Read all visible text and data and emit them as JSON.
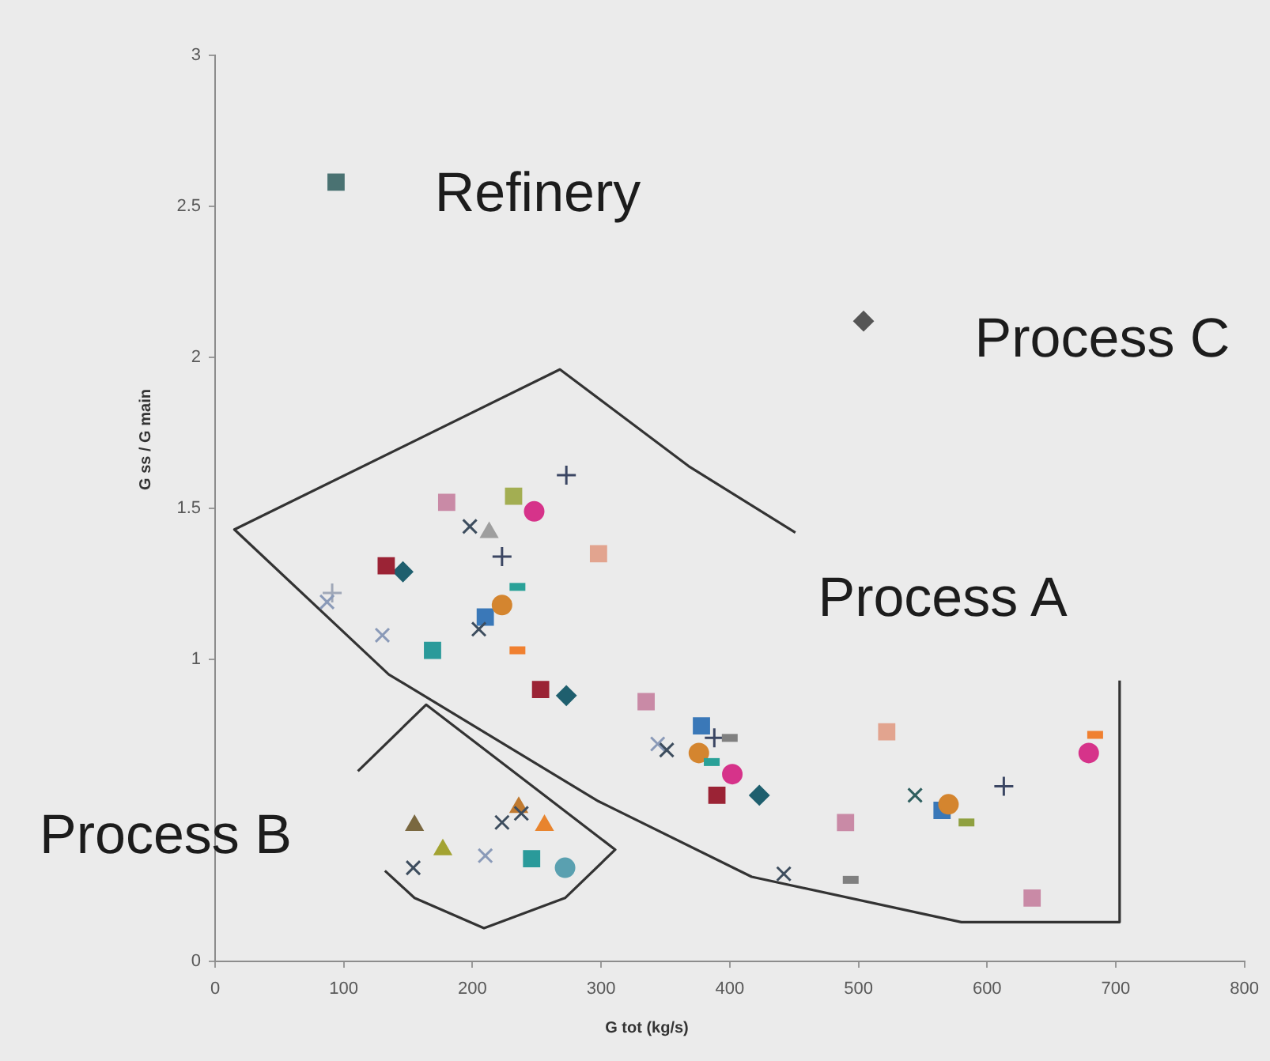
{
  "chart_data": {
    "type": "scatter",
    "xlabel": "G tot (kg/s)",
    "ylabel": "G ss / G main",
    "xlim": [
      0,
      800
    ],
    "xticks": [
      0,
      100,
      200,
      300,
      400,
      500,
      600,
      700,
      800
    ],
    "ylim": [
      0,
      3
    ],
    "yticks": [
      0,
      1,
      1.5,
      2,
      2.5,
      3
    ],
    "annotations": [
      "Refinery",
      "Process C",
      "Process A",
      "Process B"
    ],
    "series": [
      {
        "type": "scatter",
        "marker": "square",
        "color": "#4a7272",
        "x": [
          94
        ],
        "values": [
          2.58
        ]
      },
      {
        "type": "scatter",
        "marker": "square",
        "color": "#c98aa6",
        "x": [
          180,
          335,
          490,
          635
        ],
        "values": [
          1.52,
          0.86,
          0.46,
          0.21
        ]
      },
      {
        "type": "scatter",
        "marker": "square",
        "color": "#a3ae52",
        "x": [
          232
        ],
        "values": [
          1.54
        ]
      },
      {
        "type": "scatter",
        "marker": "circle",
        "color": "#d6338a",
        "x": [
          248,
          402,
          679
        ],
        "values": [
          1.49,
          0.62,
          0.69
        ]
      },
      {
        "type": "scatter",
        "marker": "plus",
        "color": "#3b4663",
        "x": [
          273,
          223,
          388,
          613
        ],
        "values": [
          1.61,
          1.34,
          0.74,
          0.58
        ]
      },
      {
        "type": "scatter",
        "marker": "cross",
        "color": "#3d4d5e",
        "x": [
          198,
          205,
          154,
          223,
          238,
          351,
          442
        ],
        "values": [
          1.44,
          1.1,
          0.31,
          0.46,
          0.49,
          0.7,
          0.29
        ]
      },
      {
        "type": "scatter",
        "marker": "cross",
        "color": "#8a9ab8",
        "x": [
          87,
          130,
          210,
          344
        ],
        "values": [
          1.19,
          1.08,
          0.35,
          0.72
        ]
      },
      {
        "type": "scatter",
        "marker": "plus",
        "color": "#a0a8b8",
        "x": [
          91
        ],
        "values": [
          1.22
        ]
      },
      {
        "type": "scatter",
        "marker": "triangle",
        "color": "#9e9e9e",
        "x": [
          213
        ],
        "values": [
          1.42
        ]
      },
      {
        "type": "scatter",
        "marker": "square",
        "color": "#9b2335",
        "x": [
          133,
          253,
          390
        ],
        "values": [
          1.31,
          0.9,
          0.55
        ]
      },
      {
        "type": "scatter",
        "marker": "diamond",
        "color": "#1f5f6e",
        "x": [
          146,
          273,
          423
        ],
        "values": [
          1.29,
          0.88,
          0.55
        ]
      },
      {
        "type": "scatter",
        "marker": "square",
        "color": "#e2a48f",
        "x": [
          298,
          522
        ],
        "values": [
          1.35,
          0.76
        ]
      },
      {
        "type": "scatter",
        "color": "#2aa198",
        "x": [
          235,
          386
        ],
        "values": [
          1.24,
          0.66
        ]
      },
      {
        "type": "scatter",
        "marker": "circle",
        "color": "#d4852f",
        "x": [
          223,
          376,
          570
        ],
        "values": [
          1.18,
          0.69,
          0.52
        ]
      },
      {
        "type": "scatter",
        "marker": "square",
        "color": "#3a78b8",
        "x": [
          210,
          378,
          565
        ],
        "values": [
          1.14,
          0.78,
          0.5
        ]
      },
      {
        "type": "scatter",
        "marker": "square",
        "color": "#2a9a9a",
        "x": [
          169,
          246
        ],
        "values": [
          1.03,
          0.34
        ]
      },
      {
        "type": "scatter",
        "color": "#f08030",
        "x": [
          235,
          684
        ],
        "values": [
          1.03,
          0.75
        ]
      },
      {
        "type": "scatter",
        "marker": "triangle",
        "color": "#7a6840",
        "x": [
          155
        ],
        "values": [
          0.45
        ]
      },
      {
        "type": "scatter",
        "marker": "triangle",
        "color": "#a3a332",
        "x": [
          177
        ],
        "values": [
          0.37
        ]
      },
      {
        "type": "scatter",
        "marker": "triangle",
        "color": "#c07a30",
        "x": [
          236
        ],
        "values": [
          0.51
        ]
      },
      {
        "type": "scatter",
        "marker": "triangle",
        "color": "#e8842e",
        "x": [
          256
        ],
        "values": [
          0.45
        ]
      },
      {
        "type": "scatter",
        "marker": "circle",
        "color": "#5aa0b0",
        "x": [
          272
        ],
        "values": [
          0.31
        ]
      },
      {
        "type": "scatter",
        "color": "#808080",
        "x": [
          400,
          494
        ],
        "values": [
          0.74,
          0.27
        ]
      },
      {
        "type": "scatter",
        "marker": "cross",
        "color": "#2f5f5f",
        "x": [
          544
        ],
        "values": [
          0.55
        ]
      },
      {
        "type": "scatter",
        "color": "#8fa040",
        "x": [
          584
        ],
        "values": [
          0.46
        ]
      },
      {
        "type": "scatter",
        "marker": "diamond",
        "color": "#555555",
        "x": [
          504
        ],
        "values": [
          2.12
        ]
      },
      {
        "type": "line",
        "marker": "none",
        "color": "#333333",
        "x": [
          451,
          368,
          268,
          15,
          135,
          298,
          417,
          580,
          703,
          703
        ],
        "values": [
          1.42,
          1.64,
          1.96,
          1.43,
          0.95,
          0.53,
          0.28,
          0.13,
          0.13,
          0.93
        ]
      },
      {
        "type": "line",
        "marker": "none",
        "color": "#333333",
        "x": [
          111,
          164,
          311,
          272,
          209,
          155,
          132
        ],
        "values": [
          0.63,
          0.85,
          0.37,
          0.21,
          0.11,
          0.21,
          0.3
        ]
      }
    ]
  }
}
